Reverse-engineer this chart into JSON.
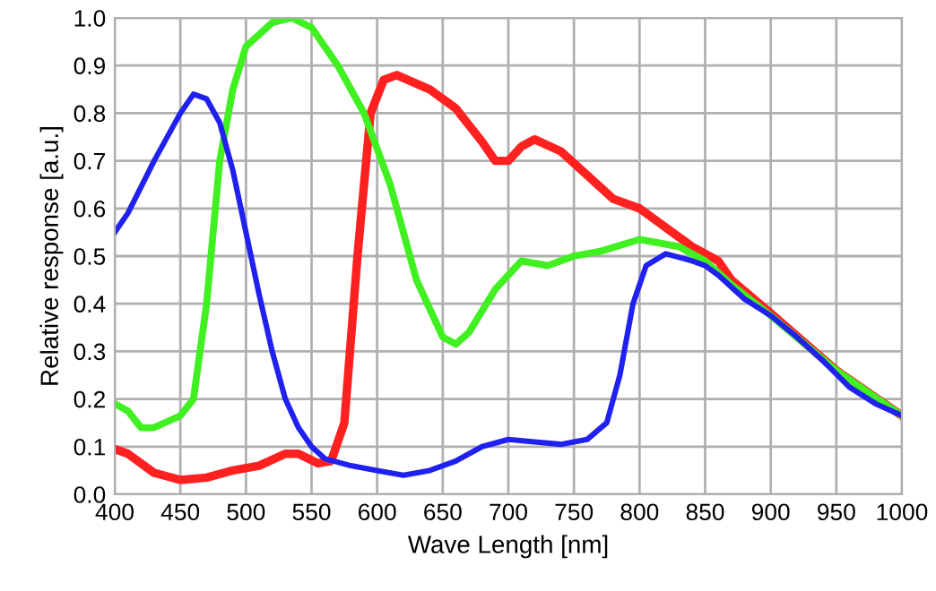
{
  "chart_data": {
    "type": "line",
    "xlabel": "Wave Length [nm]",
    "ylabel": "Relative response [a.u.]",
    "xlim": [
      400,
      1000
    ],
    "xticks": [
      400,
      450,
      500,
      550,
      600,
      650,
      700,
      750,
      800,
      850,
      900,
      950,
      1000
    ],
    "ylim": [
      0,
      1.0
    ],
    "yticks": [
      {
        "value": 0,
        "label": "0.0"
      },
      0.1,
      0.2,
      0.3,
      0.4,
      0.5,
      0.6,
      0.7,
      0.8,
      0.9,
      {
        "value": 1.0,
        "label": "1.0"
      }
    ],
    "grid": true,
    "marker": "none",
    "line_style": "solid",
    "series": [
      {
        "color": "#ff2020",
        "x": [
          400,
          410,
          430,
          450,
          470,
          490,
          510,
          530,
          540,
          555,
          565,
          575,
          585,
          595,
          605,
          615,
          640,
          660,
          680,
          690,
          700,
          710,
          720,
          740,
          760,
          780,
          800,
          820,
          840,
          860,
          870,
          900,
          950,
          1000
        ],
        "values": [
          0.095,
          0.085,
          0.045,
          0.03,
          0.035,
          0.05,
          0.06,
          0.085,
          0.085,
          0.065,
          0.07,
          0.15,
          0.5,
          0.8,
          0.87,
          0.88,
          0.85,
          0.81,
          0.74,
          0.7,
          0.7,
          0.73,
          0.745,
          0.72,
          0.67,
          0.62,
          0.6,
          0.56,
          0.52,
          0.49,
          0.45,
          0.38,
          0.26,
          0.165
        ]
      },
      {
        "color": "#40f020",
        "x": [
          400,
          410,
          420,
          430,
          450,
          460,
          470,
          480,
          490,
          500,
          520,
          535,
          550,
          570,
          590,
          610,
          630,
          650,
          660,
          670,
          690,
          710,
          730,
          750,
          770,
          800,
          830,
          850,
          870,
          900,
          950,
          1000
        ],
        "values": [
          0.19,
          0.175,
          0.14,
          0.14,
          0.165,
          0.2,
          0.4,
          0.7,
          0.85,
          0.94,
          0.99,
          1.0,
          0.98,
          0.9,
          0.8,
          0.65,
          0.45,
          0.33,
          0.315,
          0.34,
          0.43,
          0.49,
          0.48,
          0.5,
          0.51,
          0.535,
          0.52,
          0.49,
          0.44,
          0.375,
          0.26,
          0.165
        ]
      },
      {
        "color": "#2020f0",
        "x": [
          400,
          410,
          430,
          450,
          460,
          470,
          480,
          490,
          500,
          510,
          520,
          530,
          540,
          550,
          560,
          580,
          600,
          620,
          640,
          660,
          680,
          700,
          720,
          740,
          760,
          775,
          785,
          795,
          805,
          820,
          840,
          850,
          860,
          880,
          900,
          920,
          940,
          960,
          980,
          1000
        ],
        "values": [
          0.55,
          0.59,
          0.7,
          0.8,
          0.84,
          0.83,
          0.78,
          0.68,
          0.55,
          0.42,
          0.3,
          0.2,
          0.14,
          0.1,
          0.075,
          0.06,
          0.05,
          0.04,
          0.05,
          0.07,
          0.1,
          0.115,
          0.11,
          0.105,
          0.115,
          0.15,
          0.25,
          0.4,
          0.48,
          0.505,
          0.49,
          0.48,
          0.46,
          0.41,
          0.375,
          0.33,
          0.28,
          0.225,
          0.19,
          0.165
        ]
      }
    ]
  }
}
